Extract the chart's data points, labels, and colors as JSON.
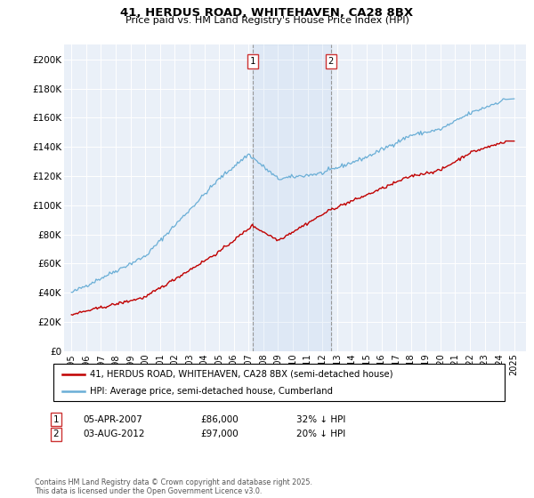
{
  "title1": "41, HERDUS ROAD, WHITEHAVEN, CA28 8BX",
  "title2": "Price paid vs. HM Land Registry's House Price Index (HPI)",
  "legend1": "41, HERDUS ROAD, WHITEHAVEN, CA28 8BX (semi-detached house)",
  "legend2": "HPI: Average price, semi-detached house, Cumberland",
  "sale1_date": "05-APR-2007",
  "sale1_price": "£86,000",
  "sale1_hpi": "32% ↓ HPI",
  "sale2_date": "03-AUG-2012",
  "sale2_price": "£97,000",
  "sale2_hpi": "20% ↓ HPI",
  "footer": "Contains HM Land Registry data © Crown copyright and database right 2025.\nThis data is licensed under the Open Government Licence v3.0.",
  "hpi_color": "#6aaed6",
  "price_color": "#c00000",
  "sale1_x": 2007.26,
  "sale2_x": 2012.58,
  "ylim_max": 210000,
  "yticks": [
    0,
    20000,
    40000,
    60000,
    80000,
    100000,
    120000,
    140000,
    160000,
    180000,
    200000
  ],
  "ytick_labels": [
    "£0",
    "£20K",
    "£40K",
    "£60K",
    "£80K",
    "£100K",
    "£120K",
    "£140K",
    "£160K",
    "£180K",
    "£200K"
  ],
  "background_color": "#eaf0f8"
}
